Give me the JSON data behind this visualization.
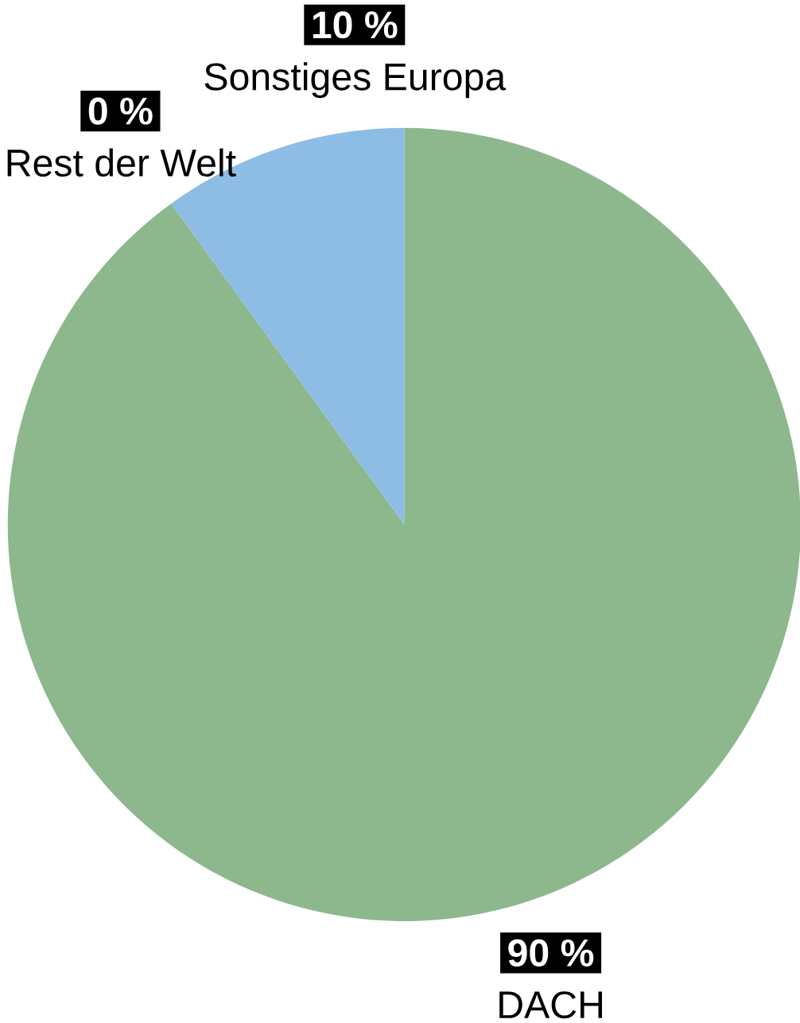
{
  "chart_data": {
    "type": "pie",
    "categories": [
      "DACH",
      "Rest der Welt",
      "Sonstiges Europa"
    ],
    "values": [
      90,
      0,
      10
    ],
    "colors": [
      "#8db88e",
      "#b0b0b0",
      "#8dbde4"
    ],
    "value_labels": [
      "90 %",
      "0 %",
      "10 %"
    ]
  }
}
